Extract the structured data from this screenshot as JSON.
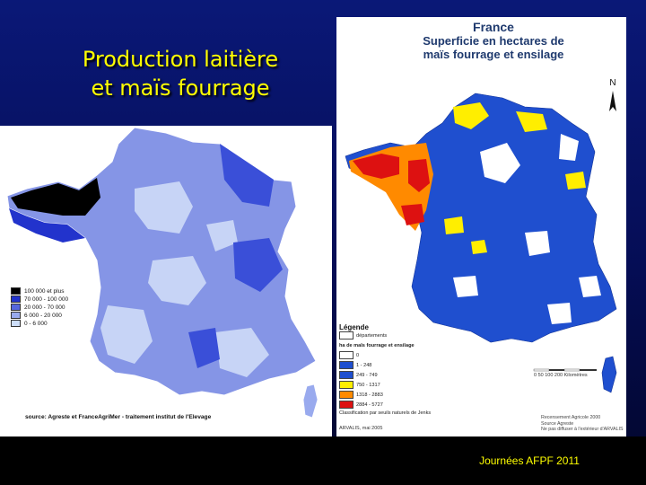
{
  "slide": {
    "title_line1": "Production laitière",
    "title_line2": "et maïs fourrage",
    "footer": "Journées AFPF 2011"
  },
  "left_map": {
    "legend": [
      {
        "label": "100 000 et plus",
        "color": "#000000"
      },
      {
        "label": "70 000 - 100 000",
        "color": "#2233cc"
      },
      {
        "label": "20 000 - 70 000",
        "color": "#5566dd"
      },
      {
        "label": "6 000 - 20 000",
        "color": "#99aaee"
      },
      {
        "label": "0 - 6 000",
        "color": "#ccddf8"
      }
    ],
    "source": "source: Agreste et FranceAgriMer - traitement institut de l'Elevage"
  },
  "right_map": {
    "title_country": "France",
    "title_line1": "Superficie en hectares de",
    "title_line2": "maïs fourrage et ensilage",
    "north_label": "N",
    "legend_head": "Légende",
    "legend_dept": "départements",
    "legend_sub": "ha de maïs fourrage et ensilage",
    "legend": [
      {
        "label": "0",
        "color": "#ffffff"
      },
      {
        "label": "1 - 248",
        "color": "#1f4fcf"
      },
      {
        "label": "249 - 749",
        "color": "#1f4fcf"
      },
      {
        "label": "750 - 1317",
        "color": "#ffee00"
      },
      {
        "label": "1318 - 2883",
        "color": "#ff8a00"
      },
      {
        "label": "2884 - 5727",
        "color": "#dd1111"
      }
    ],
    "legend_note": "Classification par seuils naturels de Jenks",
    "scale_label": "0  50  100  200 Kilomètres",
    "credit": "ARVALIS, mai 2005",
    "recens_line1": "Recensement Agricole 2000",
    "recens_line2": "Source Agreste",
    "recens_line3": "Ne pas diffuser à l'extérieur d'ARVALIS"
  },
  "colors": {
    "background": "#0a1877",
    "title": "#ffff00"
  }
}
